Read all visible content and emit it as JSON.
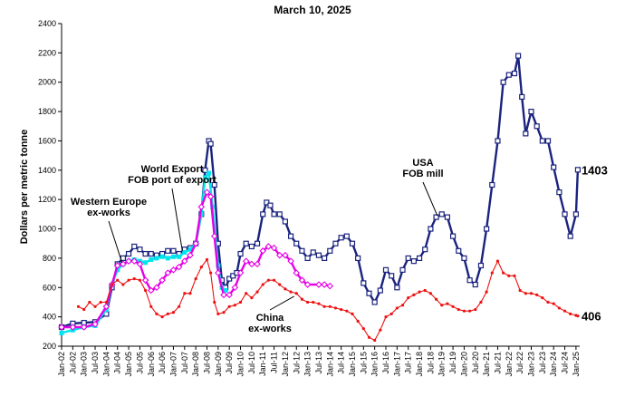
{
  "chart_data": {
    "type": "line",
    "title": "March 10, 2025",
    "ylabel": "Dollars per metric tonne",
    "xlabel": "",
    "ylim": [
      200,
      2400
    ],
    "yticks": [
      200,
      400,
      600,
      800,
      1000,
      1200,
      1400,
      1600,
      1800,
      2000,
      2200,
      2400
    ],
    "xlim": [
      "2002-01",
      "2025-03"
    ],
    "xtick_labels": [
      "Jan-02",
      "Jul-02",
      "Jan-03",
      "Jul-03",
      "Jan-04",
      "Jul-04",
      "Jan-05",
      "Jul-05",
      "Jan-06",
      "Jul-06",
      "Jan-07",
      "Jul-07",
      "Jan-08",
      "Jul-08",
      "Jan-09",
      "Jul-09",
      "Jan-10",
      "Jul-10",
      "Jan-11",
      "Jul-11",
      "Jan-12",
      "Jul-12",
      "Jan-13",
      "Jul-13",
      "Jan-14",
      "Jul-14",
      "Jan-15",
      "Jul-15",
      "Jan-16",
      "Jul-16",
      "Jan-17",
      "Jul-17",
      "Jan-18",
      "Jul-18",
      "Jan-19",
      "Jul-19",
      "Jan-20",
      "Jul-20",
      "Jan-21",
      "Jul-21",
      "Jan-22",
      "Jul-22",
      "Jan-23",
      "Jul-23",
      "Jan-24",
      "Jul-24",
      "Jan-25"
    ],
    "grid": false,
    "annotations": [
      {
        "lines": [
          "USA",
          "FOB mill"
        ],
        "points_to": "USA"
      },
      {
        "lines": [
          "World Export",
          "FOB port of export"
        ],
        "points_to": "World Export"
      },
      {
        "lines": [
          "Western Europe",
          "ex-works"
        ],
        "points_to": "Western Europe"
      },
      {
        "lines": [
          "China",
          "ex-works"
        ],
        "points_to": "China"
      }
    ],
    "end_labels": [
      {
        "series": "USA",
        "text": "1403"
      },
      {
        "series": "China",
        "text": "406"
      }
    ],
    "series": [
      {
        "name": "USA",
        "color": "#1a237e",
        "marker": "open-square",
        "points": [
          [
            "2002-01",
            330
          ],
          [
            "2002-07",
            355
          ],
          [
            "2003-01",
            360
          ],
          [
            "2003-07",
            365
          ],
          [
            "2004-01",
            420
          ],
          [
            "2004-04",
            600
          ],
          [
            "2004-07",
            760
          ],
          [
            "2004-10",
            800
          ],
          [
            "2005-01",
            830
          ],
          [
            "2005-04",
            880
          ],
          [
            "2005-07",
            860
          ],
          [
            "2005-10",
            830
          ],
          [
            "2006-01",
            830
          ],
          [
            "2006-04",
            820
          ],
          [
            "2006-07",
            830
          ],
          [
            "2006-10",
            850
          ],
          [
            "2007-01",
            850
          ],
          [
            "2007-04",
            830
          ],
          [
            "2007-07",
            860
          ],
          [
            "2007-10",
            870
          ],
          [
            "2008-01",
            900
          ],
          [
            "2008-04",
            1100
          ],
          [
            "2008-06",
            1400
          ],
          [
            "2008-08",
            1600
          ],
          [
            "2008-09",
            1580
          ],
          [
            "2008-11",
            1300
          ],
          [
            "2009-01",
            900
          ],
          [
            "2009-03",
            650
          ],
          [
            "2009-05",
            600
          ],
          [
            "2009-07",
            660
          ],
          [
            "2009-09",
            680
          ],
          [
            "2009-11",
            700
          ],
          [
            "2010-01",
            830
          ],
          [
            "2010-04",
            900
          ],
          [
            "2010-07",
            880
          ],
          [
            "2010-10",
            900
          ],
          [
            "2011-01",
            1100
          ],
          [
            "2011-03",
            1180
          ],
          [
            "2011-05",
            1160
          ],
          [
            "2011-07",
            1100
          ],
          [
            "2011-10",
            1100
          ],
          [
            "2012-01",
            1050
          ],
          [
            "2012-04",
            950
          ],
          [
            "2012-07",
            900
          ],
          [
            "2012-10",
            850
          ],
          [
            "2013-01",
            800
          ],
          [
            "2013-04",
            840
          ],
          [
            "2013-07",
            820
          ],
          [
            "2013-10",
            800
          ],
          [
            "2014-01",
            850
          ],
          [
            "2014-04",
            900
          ],
          [
            "2014-07",
            940
          ],
          [
            "2014-10",
            950
          ],
          [
            "2015-01",
            900
          ],
          [
            "2015-04",
            800
          ],
          [
            "2015-07",
            630
          ],
          [
            "2015-10",
            560
          ],
          [
            "2016-01",
            500
          ],
          [
            "2016-04",
            580
          ],
          [
            "2016-07",
            720
          ],
          [
            "2016-10",
            680
          ],
          [
            "2017-01",
            600
          ],
          [
            "2017-04",
            720
          ],
          [
            "2017-07",
            800
          ],
          [
            "2017-10",
            780
          ],
          [
            "2018-01",
            800
          ],
          [
            "2018-04",
            860
          ],
          [
            "2018-07",
            1000
          ],
          [
            "2018-10",
            1080
          ],
          [
            "2019-01",
            1100
          ],
          [
            "2019-04",
            1080
          ],
          [
            "2019-07",
            950
          ],
          [
            "2019-10",
            850
          ],
          [
            "2020-01",
            800
          ],
          [
            "2020-04",
            650
          ],
          [
            "2020-07",
            620
          ],
          [
            "2020-10",
            750
          ],
          [
            "2021-01",
            1000
          ],
          [
            "2021-04",
            1300
          ],
          [
            "2021-07",
            1600
          ],
          [
            "2021-10",
            2000
          ],
          [
            "2022-01",
            2050
          ],
          [
            "2022-04",
            2060
          ],
          [
            "2022-06",
            2180
          ],
          [
            "2022-08",
            1900
          ],
          [
            "2022-10",
            1650
          ],
          [
            "2023-01",
            1800
          ],
          [
            "2023-04",
            1700
          ],
          [
            "2023-07",
            1600
          ],
          [
            "2023-10",
            1600
          ],
          [
            "2024-01",
            1420
          ],
          [
            "2024-04",
            1250
          ],
          [
            "2024-07",
            1100
          ],
          [
            "2024-10",
            950
          ],
          [
            "2025-01",
            1100
          ],
          [
            "2025-02",
            1403
          ]
        ]
      },
      {
        "name": "World Export",
        "color": "#00e5ee",
        "marker": "filled-square",
        "points": [
          [
            "2002-01",
            290
          ],
          [
            "2002-07",
            310
          ],
          [
            "2003-01",
            330
          ],
          [
            "2003-07",
            340
          ],
          [
            "2004-01",
            450
          ],
          [
            "2004-04",
            620
          ],
          [
            "2004-07",
            720
          ],
          [
            "2004-10",
            760
          ],
          [
            "2005-01",
            780
          ],
          [
            "2005-04",
            790
          ],
          [
            "2005-07",
            780
          ],
          [
            "2005-10",
            770
          ],
          [
            "2006-01",
            790
          ],
          [
            "2006-04",
            800
          ],
          [
            "2006-07",
            810
          ],
          [
            "2006-10",
            800
          ],
          [
            "2007-01",
            810
          ],
          [
            "2007-04",
            810
          ],
          [
            "2007-07",
            840
          ],
          [
            "2007-10",
            860
          ],
          [
            "2008-01",
            900
          ],
          [
            "2008-04",
            1100
          ],
          [
            "2008-06",
            1350
          ],
          [
            "2008-08",
            1380
          ],
          [
            "2008-10",
            1150
          ],
          [
            "2009-01",
            750
          ],
          [
            "2009-03",
            600
          ],
          [
            "2009-05",
            580
          ]
        ]
      },
      {
        "name": "Western Europe",
        "color": "#e600e6",
        "marker": "open-diamond",
        "points": [
          [
            "2002-01",
            330
          ],
          [
            "2002-07",
            330
          ],
          [
            "2003-01",
            330
          ],
          [
            "2003-07",
            350
          ],
          [
            "2004-01",
            470
          ],
          [
            "2004-04",
            620
          ],
          [
            "2004-07",
            750
          ],
          [
            "2004-10",
            760
          ],
          [
            "2005-01",
            780
          ],
          [
            "2005-04",
            780
          ],
          [
            "2005-07",
            760
          ],
          [
            "2005-10",
            650
          ],
          [
            "2006-01",
            580
          ],
          [
            "2006-04",
            600
          ],
          [
            "2006-07",
            650
          ],
          [
            "2006-10",
            700
          ],
          [
            "2007-01",
            720
          ],
          [
            "2007-04",
            740
          ],
          [
            "2007-07",
            780
          ],
          [
            "2007-10",
            820
          ],
          [
            "2008-01",
            900
          ],
          [
            "2008-04",
            1150
          ],
          [
            "2008-07",
            1250
          ],
          [
            "2008-09",
            1220
          ],
          [
            "2008-11",
            950
          ],
          [
            "2009-01",
            700
          ],
          [
            "2009-04",
            550
          ],
          [
            "2009-07",
            550
          ],
          [
            "2009-10",
            600
          ],
          [
            "2010-01",
            700
          ],
          [
            "2010-04",
            780
          ],
          [
            "2010-07",
            760
          ],
          [
            "2010-10",
            760
          ],
          [
            "2011-01",
            850
          ],
          [
            "2011-04",
            880
          ],
          [
            "2011-07",
            870
          ],
          [
            "2011-10",
            820
          ],
          [
            "2012-01",
            820
          ],
          [
            "2012-04",
            780
          ],
          [
            "2012-07",
            700
          ],
          [
            "2012-10",
            650
          ],
          [
            "2013-01",
            620
          ],
          [
            "2013-07",
            620
          ],
          [
            "2013-10",
            620
          ],
          [
            "2014-01",
            610
          ]
        ]
      },
      {
        "name": "China",
        "color": "#ee1111",
        "marker": "dot",
        "points": [
          [
            "2002-10",
            470
          ],
          [
            "2003-01",
            450
          ],
          [
            "2003-04",
            500
          ],
          [
            "2003-07",
            470
          ],
          [
            "2003-10",
            500
          ],
          [
            "2004-01",
            500
          ],
          [
            "2004-04",
            620
          ],
          [
            "2004-07",
            650
          ],
          [
            "2004-10",
            620
          ],
          [
            "2005-01",
            650
          ],
          [
            "2005-04",
            660
          ],
          [
            "2005-07",
            650
          ],
          [
            "2005-10",
            580
          ],
          [
            "2006-01",
            470
          ],
          [
            "2006-04",
            420
          ],
          [
            "2006-07",
            400
          ],
          [
            "2006-10",
            420
          ],
          [
            "2007-01",
            430
          ],
          [
            "2007-04",
            470
          ],
          [
            "2007-07",
            560
          ],
          [
            "2007-10",
            560
          ],
          [
            "2008-01",
            660
          ],
          [
            "2008-04",
            740
          ],
          [
            "2008-07",
            790
          ],
          [
            "2008-09",
            700
          ],
          [
            "2008-11",
            500
          ],
          [
            "2009-01",
            420
          ],
          [
            "2009-04",
            430
          ],
          [
            "2009-07",
            470
          ],
          [
            "2009-10",
            480
          ],
          [
            "2010-01",
            500
          ],
          [
            "2010-04",
            560
          ],
          [
            "2010-07",
            530
          ],
          [
            "2010-10",
            570
          ],
          [
            "2011-01",
            620
          ],
          [
            "2011-04",
            650
          ],
          [
            "2011-07",
            650
          ],
          [
            "2011-10",
            620
          ],
          [
            "2012-01",
            590
          ],
          [
            "2012-04",
            570
          ],
          [
            "2012-07",
            560
          ],
          [
            "2012-10",
            520
          ],
          [
            "2013-01",
            500
          ],
          [
            "2013-04",
            500
          ],
          [
            "2013-07",
            490
          ],
          [
            "2013-10",
            470
          ],
          [
            "2014-01",
            470
          ],
          [
            "2014-04",
            460
          ],
          [
            "2014-07",
            450
          ],
          [
            "2014-10",
            440
          ],
          [
            "2015-01",
            420
          ],
          [
            "2015-04",
            370
          ],
          [
            "2015-07",
            320
          ],
          [
            "2015-10",
            260
          ],
          [
            "2016-01",
            240
          ],
          [
            "2016-04",
            310
          ],
          [
            "2016-07",
            400
          ],
          [
            "2016-10",
            420
          ],
          [
            "2017-01",
            460
          ],
          [
            "2017-04",
            480
          ],
          [
            "2017-07",
            530
          ],
          [
            "2017-10",
            550
          ],
          [
            "2018-01",
            570
          ],
          [
            "2018-04",
            580
          ],
          [
            "2018-07",
            560
          ],
          [
            "2018-10",
            520
          ],
          [
            "2019-01",
            480
          ],
          [
            "2019-04",
            490
          ],
          [
            "2019-07",
            470
          ],
          [
            "2019-10",
            450
          ],
          [
            "2020-01",
            440
          ],
          [
            "2020-04",
            440
          ],
          [
            "2020-07",
            450
          ],
          [
            "2020-10",
            500
          ],
          [
            "2021-01",
            570
          ],
          [
            "2021-04",
            700
          ],
          [
            "2021-07",
            780
          ],
          [
            "2021-10",
            700
          ],
          [
            "2022-01",
            680
          ],
          [
            "2022-04",
            680
          ],
          [
            "2022-07",
            580
          ],
          [
            "2022-10",
            560
          ],
          [
            "2023-01",
            560
          ],
          [
            "2023-04",
            550
          ],
          [
            "2023-07",
            530
          ],
          [
            "2023-10",
            500
          ],
          [
            "2024-01",
            490
          ],
          [
            "2024-04",
            460
          ],
          [
            "2024-07",
            440
          ],
          [
            "2024-10",
            420
          ],
          [
            "2025-01",
            410
          ],
          [
            "2025-02",
            406
          ]
        ]
      }
    ]
  }
}
